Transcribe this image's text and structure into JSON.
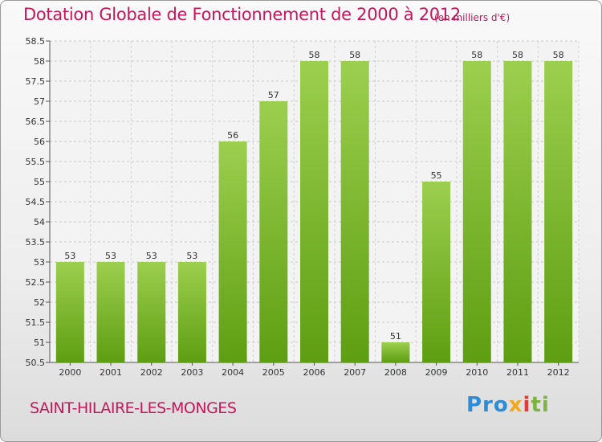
{
  "header": {
    "title": "Dotation Globale de Fonctionnement de 2000 à 2012",
    "unit": "(en milliers d'€)"
  },
  "footer": {
    "city": "SAINT-HILAIRE-LES-MONGES",
    "logo": {
      "p1": "Pro",
      "p2": "x",
      "p3": "i",
      "p4": "ti",
      "colors": [
        "#2e8bd6",
        "#f2a81d",
        "#e53935",
        "#7cb342"
      ]
    }
  },
  "colors": {
    "bar_top": "#9ccf4e",
    "bar_bottom": "#5e9e12",
    "title": "#c2185b"
  },
  "chart_data": {
    "type": "bar",
    "title": "Dotation Globale de Fonctionnement de 2000 à 2012",
    "subtitle": "(en milliers d'€)",
    "xlabel": "",
    "ylabel": "",
    "categories": [
      "2000",
      "2001",
      "2002",
      "2003",
      "2004",
      "2005",
      "2006",
      "2007",
      "2008",
      "2009",
      "2010",
      "2011",
      "2012"
    ],
    "values": [
      53,
      53,
      53,
      53,
      56,
      57,
      58,
      58,
      51,
      55,
      58,
      58,
      58
    ],
    "data_labels": [
      "53",
      "53",
      "53",
      "53",
      "56",
      "57",
      "58",
      "58",
      "51",
      "55",
      "58",
      "58",
      "58"
    ],
    "ylim": [
      50.5,
      58.5
    ],
    "yticks": [
      "50.5",
      "51",
      "51.5",
      "52",
      "52.5",
      "53",
      "53.5",
      "54",
      "54.5",
      "55",
      "55.5",
      "56",
      "56.5",
      "57",
      "57.5",
      "58",
      "58.5"
    ],
    "grid": true,
    "legend": "none"
  }
}
